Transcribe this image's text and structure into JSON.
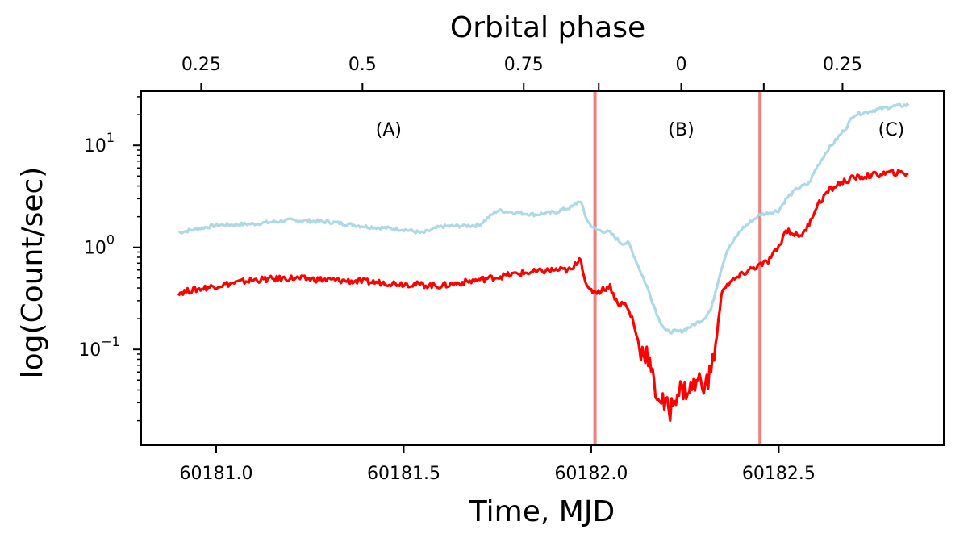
{
  "chart_data": {
    "type": "line",
    "title": "",
    "xlabel": "Time, MJD",
    "ylabel": "log(Count/sec)",
    "top_axis_label": "Orbital phase",
    "yscale": "log",
    "xlim": [
      60180.8,
      60182.94
    ],
    "ylim": [
      0.0115,
      34
    ],
    "x_ticks": [
      {
        "value": 60181.0,
        "label": "60181.0"
      },
      {
        "value": 60181.5,
        "label": "60181.5"
      },
      {
        "value": 60182.0,
        "label": "60182.0"
      },
      {
        "value": 60182.5,
        "label": "60182.5"
      }
    ],
    "y_ticks": [
      {
        "value": 0.1,
        "base": "10",
        "exp": "−1"
      },
      {
        "value": 1,
        "base": "10",
        "exp": "0"
      },
      {
        "value": 10,
        "base": "10",
        "exp": "1"
      }
    ],
    "top_ticks": [
      {
        "value": 60180.96,
        "label": "0.25"
      },
      {
        "value": 60181.39,
        "label": "0.5"
      },
      {
        "value": 60181.82,
        "label": "0.75"
      },
      {
        "value": 60182.02,
        "label": ""
      },
      {
        "value": 60182.24,
        "label": "0"
      },
      {
        "value": 60182.46,
        "label": ""
      },
      {
        "value": 60182.67,
        "label": "0.25"
      }
    ],
    "vlines": [
      {
        "x": 60182.01,
        "color": "#f08080"
      },
      {
        "x": 60182.45,
        "color": "#f08080"
      }
    ],
    "regions": [
      {
        "label": "(A)",
        "x": 60181.46,
        "y": 12.5
      },
      {
        "label": "(B)",
        "x": 60182.24,
        "y": 12.5
      },
      {
        "label": "(C)",
        "x": 60182.8,
        "y": 12.5
      }
    ],
    "series": [
      {
        "name": "light-blue",
        "color": "#add8e6",
        "x": [
          60180.9,
          60181.0,
          60181.1,
          60181.2,
          60181.3,
          60181.4,
          60181.5,
          60181.55,
          60181.6,
          60181.7,
          60181.75,
          60181.8,
          60181.85,
          60181.9,
          60181.95,
          60181.97,
          60181.99,
          60182.01,
          60182.05,
          60182.08,
          60182.1,
          60182.13,
          60182.15,
          60182.18,
          60182.2,
          60182.24,
          60182.28,
          60182.3,
          60182.32,
          60182.34,
          60182.36,
          60182.4,
          60182.45,
          60182.5,
          60182.52,
          60182.55,
          60182.58,
          60182.6,
          60182.63,
          60182.65,
          60182.68,
          60182.7,
          60182.75,
          60182.8,
          60182.85
        ],
        "values": [
          1.4,
          1.65,
          1.7,
          1.85,
          1.78,
          1.6,
          1.5,
          1.38,
          1.6,
          1.65,
          2.3,
          2.2,
          2.1,
          2.2,
          2.5,
          2.9,
          1.8,
          1.5,
          1.4,
          1.1,
          1.1,
          0.6,
          0.4,
          0.2,
          0.15,
          0.15,
          0.18,
          0.2,
          0.25,
          0.5,
          0.9,
          1.5,
          2.1,
          2.3,
          3.0,
          3.8,
          4.2,
          6,
          9,
          11,
          15,
          20,
          22,
          24,
          25
        ]
      },
      {
        "name": "red",
        "color": "#ff0000",
        "x": [
          60180.9,
          60181.0,
          60181.1,
          60181.2,
          60181.3,
          60181.4,
          60181.5,
          60181.6,
          60181.7,
          60181.8,
          60181.9,
          60181.95,
          60181.97,
          60181.99,
          60182.02,
          60182.05,
          60182.07,
          60182.09,
          60182.11,
          60182.13,
          60182.15,
          60182.17,
          60182.19,
          60182.21,
          60182.23,
          60182.26,
          60182.29,
          60182.31,
          60182.33,
          60182.35,
          60182.37,
          60182.42,
          60182.47,
          60182.5,
          60182.52,
          60182.55,
          60182.57,
          60182.6,
          60182.63,
          60182.66,
          60182.7,
          60182.75,
          60182.8,
          60182.85
        ],
        "values": [
          0.36,
          0.42,
          0.48,
          0.5,
          0.48,
          0.46,
          0.44,
          0.42,
          0.48,
          0.55,
          0.6,
          0.6,
          0.82,
          0.38,
          0.37,
          0.42,
          0.28,
          0.28,
          0.2,
          0.1,
          0.09,
          0.04,
          0.03,
          0.025,
          0.04,
          0.04,
          0.05,
          0.045,
          0.1,
          0.4,
          0.45,
          0.6,
          0.72,
          1.0,
          1.5,
          1.3,
          1.4,
          2.5,
          3.5,
          4.2,
          4.8,
          5.1,
          5.4,
          5.3
        ]
      }
    ]
  }
}
